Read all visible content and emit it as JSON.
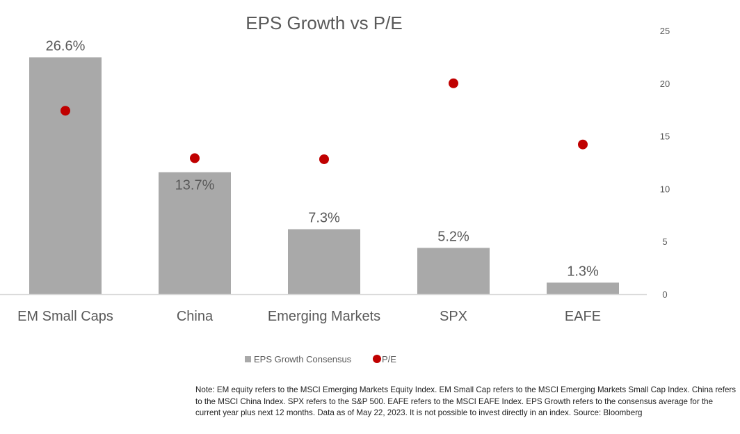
{
  "chart_data": {
    "type": "bar",
    "title": "EPS Growth vs P/E",
    "categories": [
      "EM Small Caps",
      "China",
      "Emerging Markets",
      "SPX",
      "EAFE"
    ],
    "series": [
      {
        "name": "EPS Growth Consensus",
        "type": "bar",
        "axis": "left-hidden",
        "values": [
          26.6,
          13.7,
          7.3,
          5.2,
          1.3
        ],
        "labels": [
          "26.6%",
          "13.7%",
          "7.3%",
          "5.2%",
          "1.3%"
        ],
        "color": "#a9a9a9"
      },
      {
        "name": "P/E",
        "type": "scatter",
        "axis": "right",
        "values": [
          17.4,
          12.9,
          12.8,
          20.0,
          14.2
        ],
        "color": "#c00000"
      }
    ],
    "y_right": {
      "ticks": [
        "0",
        "5",
        "10",
        "15",
        "20",
        "25"
      ],
      "ylim": [
        0,
        25
      ]
    },
    "y_left_hidden": {
      "ylim": [
        0,
        29.6
      ]
    },
    "legend": {
      "placement": "bottom",
      "entries": [
        "EPS Growth Consensus",
        "P/E"
      ]
    },
    "grid": false
  },
  "note": "Note: EM equity refers to the MSCI Emerging Markets Equity Index. EM Small Cap refers to the MSCI Emerging Markets Small Cap Index. China refers to the MSCI China Index. SPX refers to the S&P 500. EAFE refers to the MSCI EAFE Index. EPS Growth refers to the consensus average for the current year plus next 12 months.  Data as of May 22, 2023. It is not possible to invest directly in an index. Source: Bloomberg",
  "colors": {
    "bar": "#a9a9a9",
    "dot": "#c00000",
    "axis_line": "#d9d9d9",
    "text": "#595959"
  }
}
